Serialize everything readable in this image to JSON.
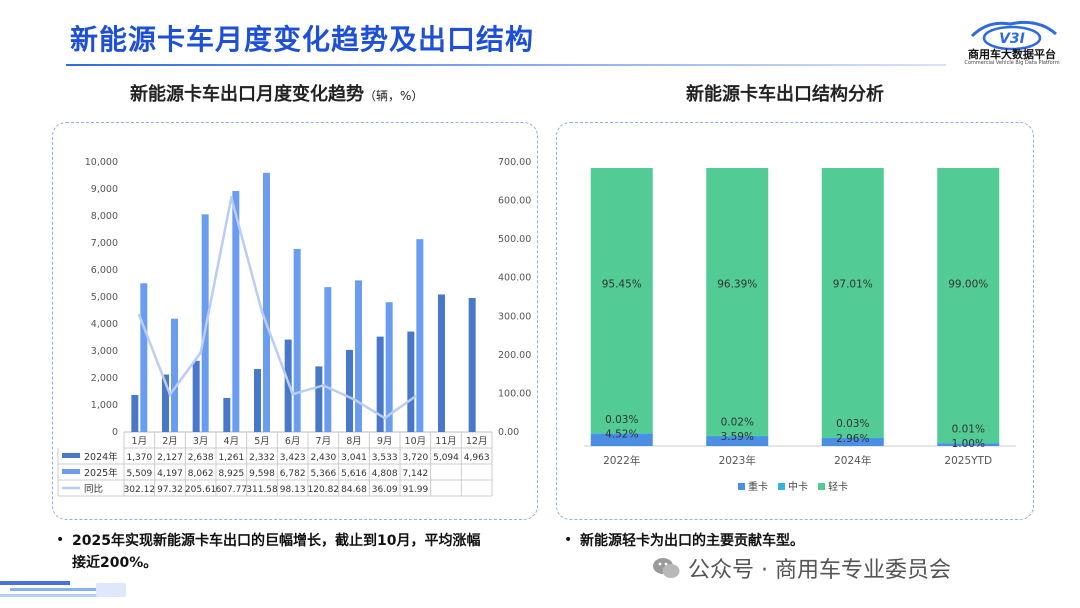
{
  "header": {
    "title": "新能源卡车月度变化趋势及出口结构",
    "logo_text": "商用车大数据平台",
    "logo_sub": "Commercial Vehicle Big Data Platform",
    "logo_mark": "V3I"
  },
  "left": {
    "title": "新能源卡车出口月度变化趋势",
    "unit": "（辆，%）",
    "note_bullet": "•",
    "note_line1": "2025年实现新能源卡车出口的巨幅增长，截止到10月，平均涨幅",
    "note_line2": "接近200%。"
  },
  "right": {
    "title": "新能源卡车出口结构分析",
    "note_bullet": "•",
    "note": "新能源轻卡为出口的主要贡献车型。"
  },
  "watermark": {
    "text": "公众号 · 商用车专业委员会"
  },
  "colors": {
    "brand": "#1d4fd7",
    "s2024": "#4a78c8",
    "s2025": "#6a9df0",
    "yoy": "#b9cdf5",
    "heavy": "#4a8fe3",
    "medium": "#34b4de",
    "light": "#52cc94"
  },
  "chart_data": [
    {
      "type": "bar",
      "title": "新能源卡车出口月度变化趋势",
      "categories": [
        "1月",
        "2月",
        "3月",
        "4月",
        "5月",
        "6月",
        "7月",
        "8月",
        "9月",
        "10月",
        "11月",
        "12月"
      ],
      "series": [
        {
          "name": "2024年",
          "type": "bar",
          "axis": "left",
          "values": [
            1370,
            2127,
            2638,
            1261,
            2332,
            3423,
            2430,
            3041,
            3533,
            3720,
            5094,
            4963
          ],
          "labels": [
            "1,370",
            "2,127",
            "2,638",
            "1,261",
            "2,332",
            "3,423",
            "2,430",
            "3,041",
            "3,533",
            "3,720",
            "5,094",
            "4,963"
          ]
        },
        {
          "name": "2025年",
          "type": "bar",
          "axis": "left",
          "values": [
            5509,
            4197,
            8062,
            8925,
            9598,
            6782,
            5366,
            5616,
            4808,
            7142,
            null,
            null
          ],
          "labels": [
            "5,509",
            "4,197",
            "8,062",
            "8,925",
            "9,598",
            "6,782",
            "5,366",
            "5,616",
            "4,808",
            "7,142",
            "",
            ""
          ]
        },
        {
          "name": "同比",
          "type": "line",
          "axis": "right",
          "values": [
            302.12,
            97.32,
            205.61,
            607.77,
            311.58,
            98.13,
            120.82,
            84.68,
            36.09,
            91.99,
            null,
            null
          ],
          "labels": [
            "302.12",
            "97.32",
            "205.61",
            "607.77",
            "311.58",
            "98.13",
            "120.82",
            "84.68",
            "36.09",
            "91.99",
            "",
            ""
          ]
        }
      ],
      "ylim": [
        0,
        10000
      ],
      "yticks": [
        "0",
        "1,000",
        "2,000",
        "3,000",
        "4,000",
        "5,000",
        "6,000",
        "7,000",
        "8,000",
        "9,000",
        "10,000"
      ],
      "y2lim": [
        0,
        700
      ],
      "y2ticks": [
        "0.00",
        "100.00",
        "200.00",
        "300.00",
        "400.00",
        "500.00",
        "600.00",
        "700.00"
      ]
    },
    {
      "type": "bar",
      "stacked": true,
      "title": "新能源卡车出口结构分析",
      "categories": [
        "2022年",
        "2023年",
        "2024年",
        "2025YTD"
      ],
      "series": [
        {
          "name": "重卡",
          "values": [
            4.52,
            3.59,
            2.96,
            1.0
          ],
          "labels": [
            "4.52%",
            "3.59%",
            "2.96%",
            "1.00%"
          ]
        },
        {
          "name": "中卡",
          "values": [
            0.03,
            0.02,
            0.03,
            0.01
          ],
          "labels": [
            "0.03%",
            "0.02%",
            "0.03%",
            "0.01%"
          ]
        },
        {
          "name": "轻卡",
          "values": [
            95.45,
            96.39,
            97.01,
            99.0
          ],
          "labels": [
            "95.45%",
            "96.39%",
            "97.01%",
            "99.00%"
          ]
        }
      ],
      "ylim": [
        0,
        100
      ],
      "legend": "bottom"
    }
  ]
}
